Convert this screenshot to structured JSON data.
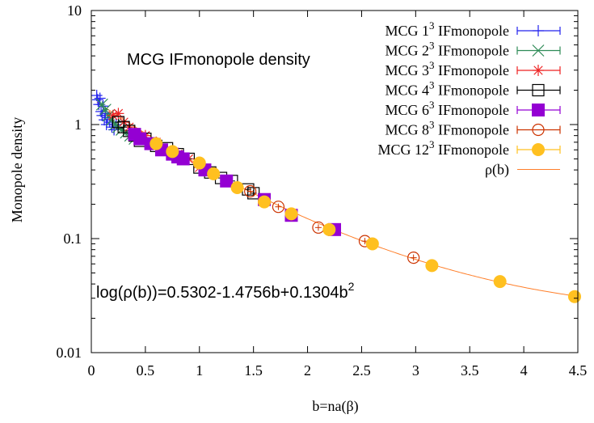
{
  "chart_data": {
    "type": "scatter",
    "title": "MCG IFmonopole density",
    "xlabel": "b=na(β)",
    "ylabel": "Monopole density",
    "xlim": [
      0,
      4.5
    ],
    "ylim": [
      0.01,
      10
    ],
    "yscale": "log",
    "grid": false,
    "legend_position": "top-right",
    "x_ticks": [
      "0",
      "0.5",
      "1",
      "1.5",
      "2",
      "2.5",
      "3",
      "3.5",
      "4",
      "4.5"
    ],
    "y_ticks": [
      "0.01",
      "0.1",
      "1",
      "10"
    ],
    "annotation": {
      "base": "log(ρ(b))=0.5302-1.4756b+0.1304b",
      "sup": "2"
    },
    "fit": {
      "name": "ρ(b)",
      "color": "#ff7f2a",
      "a": 0.5302,
      "b": -1.4756,
      "c": 0.1304,
      "x_range": [
        0.05,
        4.5
      ]
    },
    "series": [
      {
        "name": "MCG 1",
        "sup": "3",
        "suffix": " IFmonopole",
        "marker": "plus",
        "color": "#2222ee",
        "points": [
          [
            0.05,
            1.8
          ],
          [
            0.06,
            1.65
          ],
          [
            0.07,
            1.5
          ],
          [
            0.08,
            1.7
          ],
          [
            0.09,
            1.3
          ],
          [
            0.1,
            1.2
          ],
          [
            0.11,
            1.45
          ],
          [
            0.12,
            1.1
          ],
          [
            0.13,
            1.25
          ],
          [
            0.14,
            1.0
          ],
          [
            0.15,
            1.15
          ],
          [
            0.17,
            1.05
          ],
          [
            0.19,
            0.95
          ],
          [
            0.21,
            0.9
          ],
          [
            0.23,
            1.0
          ]
        ]
      },
      {
        "name": "MCG 2",
        "sup": "3",
        "suffix": " IFmonopole",
        "marker": "cross",
        "color": "#2e8b57",
        "points": [
          [
            0.1,
            1.5
          ],
          [
            0.13,
            1.35
          ],
          [
            0.16,
            1.2
          ],
          [
            0.19,
            1.1
          ],
          [
            0.22,
            1.0
          ],
          [
            0.25,
            0.95
          ],
          [
            0.28,
            0.9
          ],
          [
            0.32,
            0.85
          ],
          [
            0.36,
            0.8
          ],
          [
            0.4,
            0.75
          ]
        ]
      },
      {
        "name": "MCG 3",
        "sup": "3",
        "suffix": " IFmonopole",
        "marker": "star",
        "color": "#ee2222",
        "points": [
          [
            0.2,
            1.2
          ],
          [
            0.25,
            1.25
          ],
          [
            0.3,
            1.05
          ],
          [
            0.35,
            0.95
          ],
          [
            0.4,
            0.85
          ],
          [
            0.5,
            0.8
          ],
          [
            0.6,
            0.7
          ],
          [
            0.7,
            0.6
          ],
          [
            0.8,
            0.55
          ],
          [
            0.9,
            0.5
          ],
          [
            1.0,
            0.42
          ]
        ]
      },
      {
        "name": "MCG 4",
        "sup": "3",
        "suffix": " IFmonopole",
        "marker": "square-open",
        "color": "#000000",
        "points": [
          [
            0.25,
            1.05
          ],
          [
            0.3,
            0.95
          ],
          [
            0.35,
            0.88
          ],
          [
            0.4,
            0.8
          ],
          [
            0.45,
            0.72
          ],
          [
            0.5,
            0.75
          ],
          [
            0.55,
            0.68
          ],
          [
            0.6,
            0.65
          ],
          [
            0.7,
            0.62
          ],
          [
            0.8,
            0.55
          ],
          [
            0.9,
            0.5
          ],
          [
            1.0,
            0.42
          ],
          [
            1.1,
            0.38
          ],
          [
            1.2,
            0.34
          ],
          [
            1.3,
            0.32
          ],
          [
            1.45,
            0.27
          ],
          [
            1.5,
            0.25
          ]
        ]
      },
      {
        "name": "MCG 6",
        "sup": "3",
        "suffix": " IFmonopole",
        "marker": "square-filled",
        "color": "#9400d3",
        "points": [
          [
            0.4,
            0.82
          ],
          [
            0.45,
            0.75
          ],
          [
            0.55,
            0.68
          ],
          [
            0.65,
            0.6
          ],
          [
            0.75,
            0.55
          ],
          [
            0.8,
            0.52
          ],
          [
            0.85,
            0.5
          ],
          [
            1.05,
            0.4
          ],
          [
            1.25,
            0.32
          ],
          [
            1.6,
            0.22
          ],
          [
            1.85,
            0.16
          ],
          [
            2.25,
            0.12
          ]
        ]
      },
      {
        "name": "MCG 8",
        "sup": "3",
        "suffix": " IFmonopole",
        "marker": "circle-open",
        "color": "#cc3300",
        "points": [
          [
            1.47,
            0.26
          ],
          [
            1.73,
            0.19
          ],
          [
            2.1,
            0.125
          ],
          [
            2.53,
            0.095
          ],
          [
            2.98,
            0.068
          ]
        ]
      },
      {
        "name": "MCG 12",
        "sup": "3",
        "suffix": " IFmonopole",
        "marker": "circle-filled",
        "color": "#ffc020",
        "points": [
          [
            0.6,
            0.68
          ],
          [
            0.75,
            0.58
          ],
          [
            1.0,
            0.46
          ],
          [
            1.13,
            0.37
          ],
          [
            1.35,
            0.28
          ],
          [
            1.6,
            0.21
          ],
          [
            1.85,
            0.165
          ],
          [
            2.2,
            0.12
          ],
          [
            2.6,
            0.09
          ],
          [
            3.15,
            0.058
          ],
          [
            3.78,
            0.042
          ],
          [
            4.47,
            0.031
          ]
        ]
      }
    ]
  }
}
